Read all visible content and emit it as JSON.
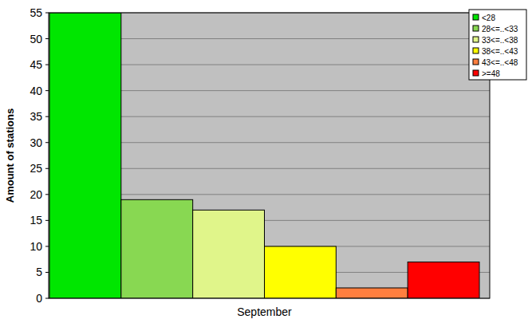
{
  "chart_data": {
    "type": "bar",
    "y_label": "Amount of stations",
    "categories": [
      "September"
    ],
    "series": [
      {
        "name": "<28",
        "color": "#00e600",
        "values": [
          55
        ]
      },
      {
        "name": "28<=..<33",
        "color": "#88d852",
        "values": [
          19
        ]
      },
      {
        "name": "33<=..<38",
        "color": "#e0f58a",
        "values": [
          17
        ]
      },
      {
        "name": "38<=..<43",
        "color": "#ffff00",
        "values": [
          10
        ]
      },
      {
        "name": "43<=..<48",
        "color": "#ff7f3f",
        "values": [
          2
        ]
      },
      {
        "name": ">=48",
        "color": "#ff0000",
        "values": [
          7
        ]
      }
    ],
    "ylim": [
      0,
      55
    ],
    "yticks": [
      0,
      5,
      10,
      15,
      20,
      25,
      30,
      35,
      40,
      45,
      50,
      55
    ],
    "grid": true,
    "legend": "top-right"
  }
}
